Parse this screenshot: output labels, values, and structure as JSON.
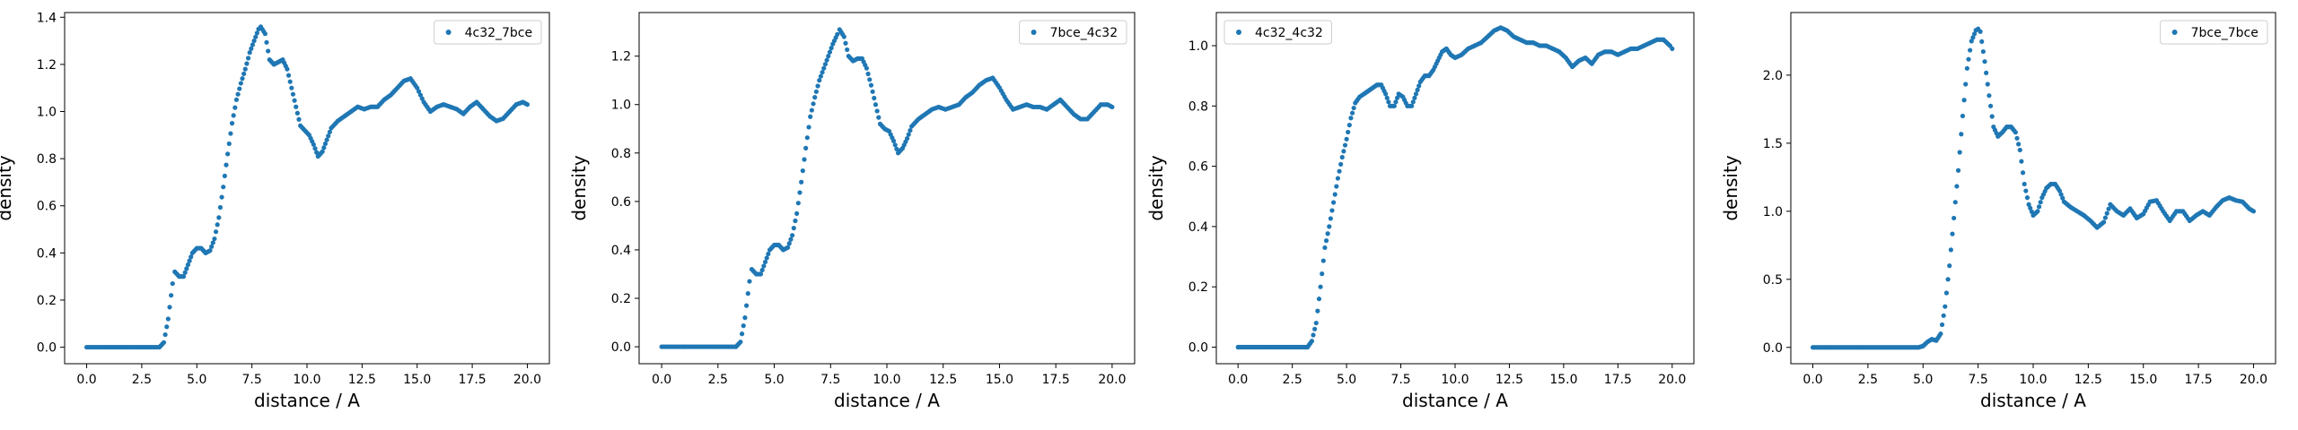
{
  "chart_data": [
    {
      "type": "scatter",
      "title": "",
      "xlabel": "distance / A",
      "ylabel": "density",
      "xlim": [
        -1.0,
        21.0
      ],
      "ylim": [
        -0.07,
        1.42
      ],
      "xticks": [
        0.0,
        2.5,
        5.0,
        7.5,
        10.0,
        12.5,
        15.0,
        17.5,
        20.0
      ],
      "xtick_labels": [
        "0.0",
        "2.5",
        "5.0",
        "7.5",
        "10.0",
        "12.5",
        "15.0",
        "17.5",
        "20.0"
      ],
      "yticks": [
        0.0,
        0.2,
        0.4,
        0.6,
        0.8,
        1.0,
        1.2,
        1.4
      ],
      "ytick_labels": [
        "0.0",
        "0.2",
        "0.4",
        "0.6",
        "0.8",
        "1.0",
        "1.2",
        "1.4"
      ],
      "legend_position": "top-right",
      "grid": false,
      "color": "#1f77b4",
      "series": [
        {
          "name": "4c32_7bce",
          "x": [
            0.0,
            3.3,
            3.5,
            3.7,
            3.9,
            4.0,
            4.2,
            4.4,
            4.6,
            4.8,
            5.0,
            5.2,
            5.4,
            5.6,
            5.8,
            6.0,
            6.2,
            6.4,
            6.6,
            6.8,
            7.0,
            7.2,
            7.4,
            7.6,
            7.8,
            7.9,
            8.1,
            8.3,
            8.5,
            8.7,
            8.9,
            9.1,
            9.3,
            9.5,
            9.7,
            9.9,
            10.1,
            10.3,
            10.5,
            10.7,
            10.9,
            11.1,
            11.4,
            11.7,
            12.0,
            12.3,
            12.6,
            12.9,
            13.2,
            13.5,
            13.8,
            14.1,
            14.4,
            14.7,
            15.0,
            15.3,
            15.6,
            15.9,
            16.2,
            16.5,
            16.8,
            17.1,
            17.4,
            17.7,
            18.0,
            18.3,
            18.6,
            18.9,
            19.2,
            19.5,
            19.8,
            20.0
          ],
          "y": [
            0.0,
            0.0,
            0.02,
            0.12,
            0.27,
            0.32,
            0.3,
            0.3,
            0.35,
            0.4,
            0.42,
            0.42,
            0.4,
            0.41,
            0.46,
            0.55,
            0.68,
            0.82,
            0.95,
            1.05,
            1.12,
            1.18,
            1.25,
            1.3,
            1.35,
            1.36,
            1.33,
            1.22,
            1.2,
            1.21,
            1.22,
            1.18,
            1.1,
            1.02,
            0.94,
            0.92,
            0.9,
            0.86,
            0.81,
            0.83,
            0.88,
            0.93,
            0.96,
            0.98,
            1.0,
            1.02,
            1.01,
            1.02,
            1.02,
            1.05,
            1.07,
            1.1,
            1.13,
            1.14,
            1.1,
            1.04,
            1.0,
            1.02,
            1.03,
            1.02,
            1.01,
            0.99,
            1.02,
            1.04,
            1.01,
            0.98,
            0.96,
            0.97,
            1.0,
            1.03,
            1.04,
            1.03
          ]
        }
      ]
    },
    {
      "type": "scatter",
      "title": "",
      "xlabel": "distance / A",
      "ylabel": "density",
      "xlim": [
        -1.0,
        21.0
      ],
      "ylim": [
        -0.07,
        1.38
      ],
      "xticks": [
        0.0,
        2.5,
        5.0,
        7.5,
        10.0,
        12.5,
        15.0,
        17.5,
        20.0
      ],
      "xtick_labels": [
        "0.0",
        "2.5",
        "5.0",
        "7.5",
        "10.0",
        "12.5",
        "15.0",
        "17.5",
        "20.0"
      ],
      "yticks": [
        0.0,
        0.2,
        0.4,
        0.6,
        0.8,
        1.0,
        1.2
      ],
      "ytick_labels": [
        "0.0",
        "0.2",
        "0.4",
        "0.6",
        "0.8",
        "1.0",
        "1.2"
      ],
      "legend_position": "top-right",
      "grid": false,
      "color": "#1f77b4",
      "series": [
        {
          "name": "7bce_4c32",
          "x": [
            0.0,
            3.3,
            3.5,
            3.7,
            3.9,
            4.0,
            4.2,
            4.4,
            4.6,
            4.8,
            5.0,
            5.2,
            5.4,
            5.6,
            5.8,
            6.0,
            6.2,
            6.4,
            6.6,
            6.8,
            7.0,
            7.2,
            7.4,
            7.6,
            7.8,
            7.9,
            8.1,
            8.3,
            8.5,
            8.7,
            8.9,
            9.1,
            9.3,
            9.5,
            9.7,
            9.9,
            10.1,
            10.3,
            10.5,
            10.7,
            10.9,
            11.1,
            11.4,
            11.7,
            12.0,
            12.3,
            12.6,
            12.9,
            13.2,
            13.5,
            13.8,
            14.1,
            14.4,
            14.7,
            15.0,
            15.3,
            15.6,
            15.9,
            16.2,
            16.5,
            16.8,
            17.1,
            17.4,
            17.7,
            18.0,
            18.3,
            18.6,
            18.9,
            19.2,
            19.5,
            19.8,
            20.0
          ],
          "y": [
            0.0,
            0.0,
            0.02,
            0.12,
            0.27,
            0.32,
            0.3,
            0.3,
            0.35,
            0.4,
            0.42,
            0.42,
            0.4,
            0.41,
            0.46,
            0.55,
            0.68,
            0.82,
            0.95,
            1.03,
            1.1,
            1.15,
            1.2,
            1.25,
            1.29,
            1.31,
            1.28,
            1.2,
            1.18,
            1.19,
            1.19,
            1.15,
            1.08,
            1.0,
            0.92,
            0.9,
            0.89,
            0.85,
            0.8,
            0.82,
            0.86,
            0.91,
            0.94,
            0.96,
            0.98,
            0.99,
            0.98,
            0.99,
            1.0,
            1.03,
            1.05,
            1.08,
            1.1,
            1.11,
            1.07,
            1.02,
            0.98,
            0.99,
            1.0,
            0.99,
            0.99,
            0.98,
            1.0,
            1.02,
            0.99,
            0.96,
            0.94,
            0.94,
            0.97,
            1.0,
            1.0,
            0.99
          ]
        }
      ]
    },
    {
      "type": "scatter",
      "title": "",
      "xlabel": "distance / A",
      "ylabel": "density",
      "xlim": [
        -1.0,
        21.0
      ],
      "ylim": [
        -0.055,
        1.11
      ],
      "xticks": [
        0.0,
        2.5,
        5.0,
        7.5,
        10.0,
        12.5,
        15.0,
        17.5,
        20.0
      ],
      "xtick_labels": [
        "0.0",
        "2.5",
        "5.0",
        "7.5",
        "10.0",
        "12.5",
        "15.0",
        "17.5",
        "20.0"
      ],
      "yticks": [
        0.0,
        0.2,
        0.4,
        0.6,
        0.8,
        1.0
      ],
      "ytick_labels": [
        "0.0",
        "0.2",
        "0.4",
        "0.6",
        "0.8",
        "1.0"
      ],
      "legend_position": "top-left",
      "grid": false,
      "color": "#1f77b4",
      "series": [
        {
          "name": "4c32_4c32",
          "x": [
            0.0,
            3.2,
            3.4,
            3.6,
            3.8,
            4.0,
            4.2,
            4.4,
            4.6,
            4.8,
            5.0,
            5.2,
            5.4,
            5.6,
            5.8,
            6.0,
            6.2,
            6.4,
            6.6,
            6.8,
            7.0,
            7.2,
            7.4,
            7.6,
            7.8,
            8.0,
            8.2,
            8.4,
            8.6,
            8.8,
            9.0,
            9.2,
            9.4,
            9.6,
            9.8,
            10.0,
            10.3,
            10.6,
            10.9,
            11.2,
            11.5,
            11.8,
            12.1,
            12.4,
            12.7,
            13.0,
            13.3,
            13.6,
            13.9,
            14.2,
            14.5,
            14.8,
            15.1,
            15.4,
            15.7,
            16.0,
            16.3,
            16.6,
            16.9,
            17.2,
            17.5,
            17.8,
            18.1,
            18.4,
            18.7,
            19.0,
            19.3,
            19.6,
            19.9,
            20.0
          ],
          "y": [
            0.0,
            0.0,
            0.02,
            0.08,
            0.2,
            0.33,
            0.4,
            0.48,
            0.56,
            0.63,
            0.69,
            0.76,
            0.81,
            0.83,
            0.84,
            0.85,
            0.86,
            0.87,
            0.87,
            0.84,
            0.8,
            0.8,
            0.84,
            0.83,
            0.8,
            0.8,
            0.84,
            0.88,
            0.9,
            0.9,
            0.92,
            0.95,
            0.98,
            0.99,
            0.97,
            0.96,
            0.97,
            0.99,
            1.0,
            1.01,
            1.03,
            1.05,
            1.06,
            1.05,
            1.03,
            1.02,
            1.01,
            1.01,
            1.0,
            1.0,
            0.99,
            0.98,
            0.96,
            0.93,
            0.95,
            0.96,
            0.94,
            0.97,
            0.98,
            0.98,
            0.97,
            0.98,
            0.99,
            0.99,
            1.0,
            1.01,
            1.02,
            1.02,
            1.0,
            0.99
          ]
        }
      ]
    },
    {
      "type": "scatter",
      "title": "",
      "xlabel": "distance / A",
      "ylabel": "density",
      "xlim": [
        -1.0,
        21.0
      ],
      "ylim": [
        -0.12,
        2.46
      ],
      "xticks": [
        0.0,
        2.5,
        5.0,
        7.5,
        10.0,
        12.5,
        15.0,
        17.5,
        20.0
      ],
      "xtick_labels": [
        "0.0",
        "2.5",
        "5.0",
        "7.5",
        "10.0",
        "12.5",
        "15.0",
        "17.5",
        "20.0"
      ],
      "yticks": [
        0.0,
        0.5,
        1.0,
        1.5,
        2.0
      ],
      "ytick_labels": [
        "0.0",
        "0.5",
        "1.0",
        "1.5",
        "2.0"
      ],
      "legend_position": "top-right",
      "grid": false,
      "color": "#1f77b4",
      "series": [
        {
          "name": "7bce_7bce",
          "x": [
            0.0,
            4.8,
            5.0,
            5.2,
            5.4,
            5.6,
            5.8,
            6.0,
            6.2,
            6.4,
            6.6,
            6.8,
            7.0,
            7.2,
            7.4,
            7.5,
            7.6,
            7.8,
            8.0,
            8.2,
            8.4,
            8.6,
            8.8,
            9.0,
            9.2,
            9.4,
            9.6,
            9.8,
            10.0,
            10.2,
            10.4,
            10.6,
            10.8,
            11.0,
            11.2,
            11.4,
            11.7,
            12.0,
            12.3,
            12.6,
            12.9,
            13.2,
            13.5,
            13.8,
            14.1,
            14.4,
            14.7,
            15.0,
            15.3,
            15.6,
            15.9,
            16.2,
            16.5,
            16.8,
            17.1,
            17.4,
            17.7,
            18.0,
            18.3,
            18.6,
            18.9,
            19.2,
            19.5,
            19.8,
            20.0
          ],
          "y": [
            0.0,
            0.0,
            0.01,
            0.04,
            0.06,
            0.05,
            0.1,
            0.3,
            0.6,
            0.95,
            1.3,
            1.7,
            2.05,
            2.25,
            2.33,
            2.34,
            2.32,
            2.1,
            1.85,
            1.62,
            1.55,
            1.58,
            1.62,
            1.62,
            1.58,
            1.45,
            1.2,
            1.05,
            0.97,
            1.0,
            1.1,
            1.17,
            1.2,
            1.2,
            1.15,
            1.07,
            1.03,
            1.0,
            0.97,
            0.93,
            0.88,
            0.92,
            1.05,
            1.0,
            0.97,
            1.02,
            0.95,
            0.98,
            1.07,
            1.08,
            1.0,
            0.93,
            1.0,
            1.0,
            0.93,
            0.97,
            1.0,
            0.97,
            1.03,
            1.08,
            1.1,
            1.08,
            1.07,
            1.02,
            1.0
          ]
        }
      ]
    }
  ]
}
